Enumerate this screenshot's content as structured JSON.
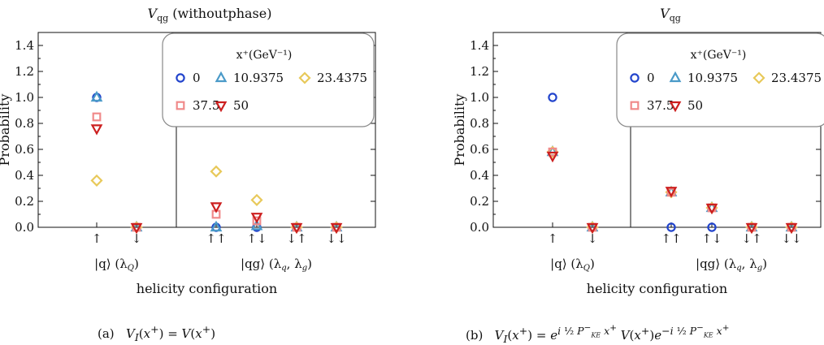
{
  "chart_data": [
    {
      "type": "scatter",
      "title": "V_qg (withoutphase)",
      "title_main": "V",
      "title_sub": "qg",
      "title_extra": "(withoutphase)",
      "xlabel": "helicity configuration",
      "ylabel": "Probability",
      "ylim": [
        0,
        1.5
      ],
      "yticks": [
        "0.0",
        "0.2",
        "0.4",
        "0.6",
        "0.8",
        "1.0",
        "1.2",
        "1.4"
      ],
      "categories": [
        "↑",
        "↓",
        "↑↑",
        "↑↓",
        "↓↑",
        "↓↓"
      ],
      "group_labels": [
        "|q⟩ (λ_Q)",
        "|qg⟩ (λ_q, λ_g)"
      ],
      "legend": {
        "title": "x⁺(GeV⁻¹)",
        "placement": "top-right"
      },
      "series": [
        {
          "name": "0",
          "marker": "circle",
          "color": "#2244cc",
          "values": [
            1.0,
            0.0,
            0.0,
            0.0,
            0.0,
            0.0
          ]
        },
        {
          "name": "10.9375",
          "marker": "triangle-up",
          "color": "#4a9ac8",
          "values": [
            1.0,
            0.0,
            0.0,
            0.01,
            0.0,
            0.0
          ]
        },
        {
          "name": "23.4375",
          "marker": "diamond",
          "color": "#e8c95a",
          "values": [
            0.36,
            0.0,
            0.43,
            0.21,
            0.0,
            0.0
          ]
        },
        {
          "name": "37.5",
          "marker": "square",
          "color": "#f08a8a",
          "values": [
            0.85,
            0.0,
            0.1,
            0.05,
            0.0,
            0.0
          ]
        },
        {
          "name": "50",
          "marker": "triangle-down",
          "color": "#cc1f1f",
          "values": [
            0.76,
            0.0,
            0.16,
            0.08,
            0.0,
            0.0
          ]
        }
      ],
      "caption": "(a)  V_I(x⁺) = V(x⁺)"
    },
    {
      "type": "scatter",
      "title": "V_qg",
      "title_main": "V",
      "title_sub": "qg",
      "title_extra": "",
      "xlabel": "helicity configuration",
      "ylabel": "Probability",
      "ylim": [
        0,
        1.5
      ],
      "yticks": [
        "0.0",
        "0.2",
        "0.4",
        "0.6",
        "0.8",
        "1.0",
        "1.2",
        "1.4"
      ],
      "categories": [
        "↑",
        "↓",
        "↑↑",
        "↑↓",
        "↓↑",
        "↓↓"
      ],
      "group_labels": [
        "|q⟩ (λ_Q)",
        "|qg⟩ (λ_q, λ_g)"
      ],
      "legend": {
        "title": "x⁺(GeV⁻¹)",
        "placement": "top-right"
      },
      "series": [
        {
          "name": "0",
          "marker": "circle",
          "color": "#2244cc",
          "values": [
            1.0,
            0.0,
            0.0,
            0.0,
            0.0,
            0.0
          ]
        },
        {
          "name": "10.9375",
          "marker": "triangle-up",
          "color": "#4a9ac8",
          "values": [
            0.58,
            0.0,
            0.27,
            0.15,
            0.0,
            0.0
          ]
        },
        {
          "name": "23.4375",
          "marker": "diamond",
          "color": "#e8c95a",
          "values": [
            0.58,
            0.0,
            0.27,
            0.15,
            0.0,
            0.0
          ]
        },
        {
          "name": "37.5",
          "marker": "square",
          "color": "#f08a8a",
          "values": [
            0.58,
            0.0,
            0.27,
            0.15,
            0.0,
            0.0
          ]
        },
        {
          "name": "50",
          "marker": "triangle-down",
          "color": "#cc1f1f",
          "values": [
            0.55,
            0.0,
            0.28,
            0.15,
            0.0,
            0.0
          ]
        }
      ],
      "caption": "(b)  V_I(x⁺) = e^{i ½ P⁻_KE x⁺} V(x⁺) e^{−i ½ P⁻_KE x⁺}"
    }
  ],
  "captions": {
    "a": {
      "label": "(a)",
      "formula": "V_I(x⁺) = V(x⁺)"
    },
    "b": {
      "label": "(b)",
      "formula": "V_I(x⁺) = e^{i ½ P⁻_KE x⁺} V(x⁺) e^{−i ½ P⁻_KE x⁺}"
    }
  },
  "colors": {
    "title": "#c81e1e",
    "axis": "#111111",
    "legend_border": "#888888"
  }
}
